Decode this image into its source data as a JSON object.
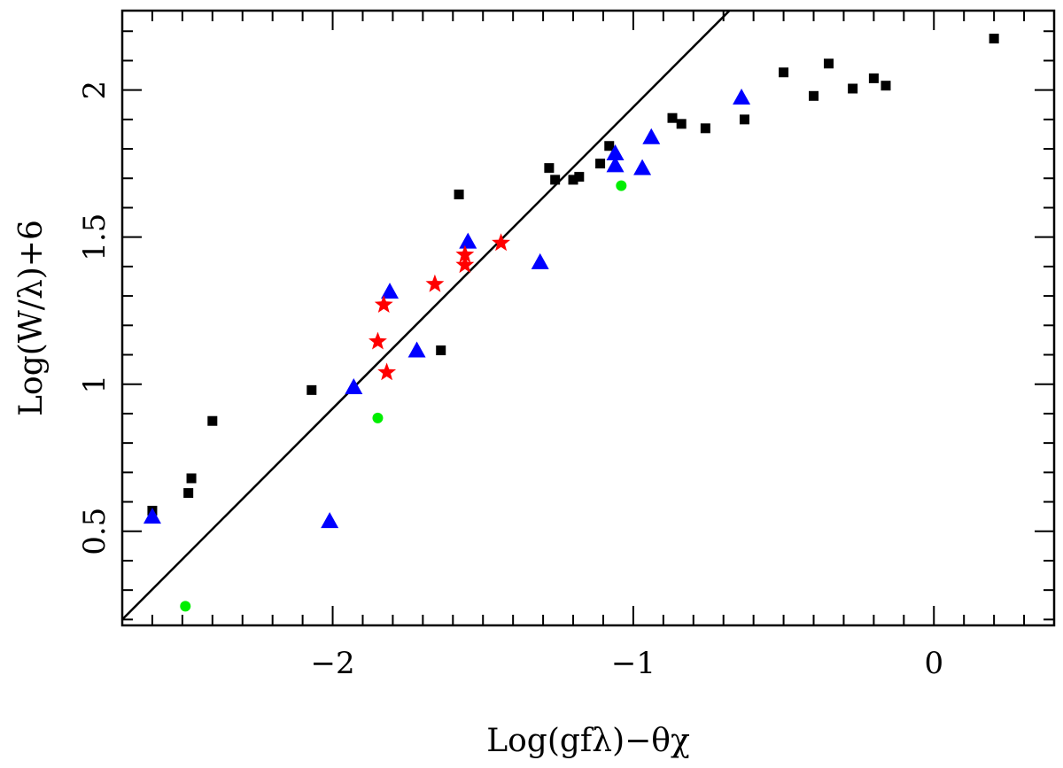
{
  "chart_data": {
    "type": "scatter",
    "title": "",
    "xlabel": "Log(gfλ)−θχ",
    "ylabel": "Log(W/λ)+6",
    "xlim": [
      -2.7,
      0.4
    ],
    "ylim": [
      0.18,
      2.27
    ],
    "x_ticks": [
      {
        "value": -2,
        "label": "−2"
      },
      {
        "value": -1,
        "label": "−1"
      },
      {
        "value": 0,
        "label": "0"
      }
    ],
    "y_ticks": [
      {
        "value": 0.5,
        "label": "0.5"
      },
      {
        "value": 1,
        "label": "1"
      },
      {
        "value": 1.5,
        "label": "1.5"
      },
      {
        "value": 2,
        "label": "2"
      }
    ],
    "x_minor_step": 0.1,
    "y_minor_step": 0.1,
    "grid": false,
    "fit_line": {
      "x": [
        -2.7,
        -0.68
      ],
      "y": [
        0.2,
        2.27
      ],
      "color": "#000000"
    },
    "series": [
      {
        "marker": "square",
        "color": "#000000",
        "points": [
          [
            -2.6,
            0.57
          ],
          [
            -2.48,
            0.63
          ],
          [
            -2.47,
            0.68
          ],
          [
            -2.4,
            0.875
          ],
          [
            -2.07,
            0.98
          ],
          [
            -1.64,
            1.115
          ],
          [
            -1.58,
            1.645
          ],
          [
            -1.28,
            1.735
          ],
          [
            -1.26,
            1.695
          ],
          [
            -1.2,
            1.695
          ],
          [
            -1.18,
            1.705
          ],
          [
            -1.11,
            1.75
          ],
          [
            -1.08,
            1.81
          ],
          [
            -0.87,
            1.905
          ],
          [
            -0.84,
            1.885
          ],
          [
            -0.76,
            1.87
          ],
          [
            -0.63,
            1.9
          ],
          [
            -0.5,
            2.06
          ],
          [
            -0.4,
            1.98
          ],
          [
            -0.35,
            2.09
          ],
          [
            -0.27,
            2.005
          ],
          [
            -0.2,
            2.04
          ],
          [
            -0.16,
            2.015
          ],
          [
            0.2,
            2.175
          ]
        ]
      },
      {
        "marker": "triangle",
        "color": "#0000ff",
        "points": [
          [
            -2.6,
            0.55
          ],
          [
            -2.01,
            0.535
          ],
          [
            -1.93,
            0.99
          ],
          [
            -1.81,
            1.315
          ],
          [
            -1.72,
            1.115
          ],
          [
            -1.55,
            1.485
          ],
          [
            -1.31,
            1.415
          ],
          [
            -1.06,
            1.785
          ],
          [
            -1.06,
            1.745
          ],
          [
            -0.94,
            1.84
          ],
          [
            -0.97,
            1.735
          ],
          [
            -0.64,
            1.975
          ]
        ]
      },
      {
        "marker": "star",
        "color": "#ff0000",
        "points": [
          [
            -1.83,
            1.27
          ],
          [
            -1.85,
            1.145
          ],
          [
            -1.82,
            1.04
          ],
          [
            -1.66,
            1.34
          ],
          [
            -1.56,
            1.44
          ],
          [
            -1.56,
            1.405
          ],
          [
            -1.44,
            1.48
          ]
        ]
      },
      {
        "marker": "circle",
        "color": "#00ee00",
        "points": [
          [
            -2.49,
            0.245
          ],
          [
            -1.85,
            0.885
          ],
          [
            -1.04,
            1.675
          ]
        ]
      }
    ]
  }
}
